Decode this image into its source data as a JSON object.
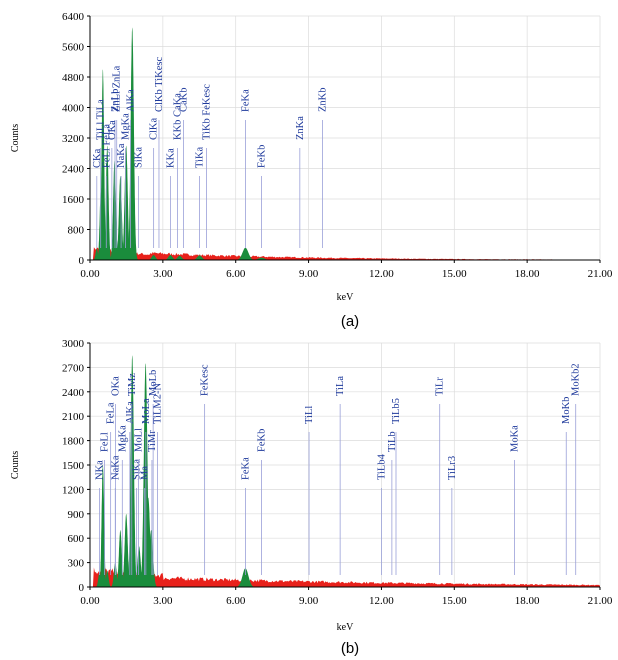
{
  "chart_data": [
    {
      "type": "area",
      "subtitle": "(a)",
      "xlabel": "keV",
      "ylabel": "Counts",
      "xlim": [
        0,
        21
      ],
      "ylim": [
        0,
        6400
      ],
      "grid": true,
      "xticks": [
        "0.00",
        "3.00",
        "6.00",
        "9.00",
        "12.00",
        "15.00",
        "18.00",
        "21.00"
      ],
      "yticks": [
        "0",
        "800",
        "1600",
        "2400",
        "3200",
        "4000",
        "4800",
        "5600",
        "6400"
      ],
      "colors": {
        "spectrum": "#e8211b",
        "peaks": "#1a8c3c",
        "labels": "#1f3a9c",
        "markers": "#9aa0d8"
      },
      "peaks": [
        {
          "e": 0.28,
          "h": 300
        },
        {
          "e": 0.45,
          "h": 1900
        },
        {
          "e": 0.53,
          "h": 5000
        },
        {
          "e": 0.71,
          "h": 3000
        },
        {
          "e": 1.01,
          "h": 2600
        },
        {
          "e": 1.05,
          "h": 1000
        },
        {
          "e": 1.25,
          "h": 2200
        },
        {
          "e": 1.49,
          "h": 3000
        },
        {
          "e": 1.74,
          "h": 6100
        },
        {
          "e": 2.62,
          "h": 130
        },
        {
          "e": 3.31,
          "h": 130
        },
        {
          "e": 3.69,
          "h": 110
        },
        {
          "e": 4.51,
          "h": 120
        },
        {
          "e": 6.4,
          "h": 320
        },
        {
          "e": 7.06,
          "h": 60
        }
      ],
      "labels": [
        {
          "text": "CKa",
          "e": 0.28
        },
        {
          "text": "TiLl TiLa",
          "e": 0.44
        },
        {
          "text": "ZnLb",
          "e": 1.03
        },
        {
          "text": "FeLl FeLa",
          "e": 0.67
        },
        {
          "text": "OKa",
          "e": 0.9
        },
        {
          "text": "ZnLl ZnLa",
          "e": 1.1
        },
        {
          "text": "NaKa",
          "e": 1.28
        },
        {
          "text": "MgKa",
          "e": 1.46
        },
        {
          "text": "AlKa",
          "e": 1.67
        },
        {
          "text": "SiKa",
          "e": 2.0
        },
        {
          "text": "ClKa",
          "e": 2.62
        },
        {
          "text": "ClKb TiKesc",
          "e": 2.84
        },
        {
          "text": "KKa",
          "e": 3.31
        },
        {
          "text": "KKb CaKa",
          "e": 3.6
        },
        {
          "text": "CaKb",
          "e": 3.85
        },
        {
          "text": "TiKa",
          "e": 4.51
        },
        {
          "text": "TiKb FeKesc",
          "e": 4.8
        },
        {
          "text": "FeKa",
          "e": 6.4
        },
        {
          "text": "FeKb",
          "e": 7.06
        },
        {
          "text": "ZnKa",
          "e": 8.64
        },
        {
          "text": "ZnKb",
          "e": 9.57
        }
      ]
    },
    {
      "type": "area",
      "subtitle": "(b)",
      "xlabel": "keV",
      "ylabel": "Counts",
      "xlim": [
        0,
        21
      ],
      "ylim": [
        0,
        3000
      ],
      "grid": true,
      "xticks": [
        "0.00",
        "3.00",
        "6.00",
        "9.00",
        "12.00",
        "15.00",
        "18.00",
        "21.00"
      ],
      "yticks": [
        "0",
        "300",
        "600",
        "900",
        "1200",
        "1500",
        "1800",
        "2100",
        "2400",
        "2700",
        "3000"
      ],
      "colors": {
        "spectrum": "#e8211b",
        "peaks": "#1a8c3c",
        "labels": "#1f3a9c",
        "markers": "#9aa0d8"
      },
      "peaks": [
        {
          "e": 0.39,
          "h": 180
        },
        {
          "e": 0.53,
          "h": 1500
        },
        {
          "e": 0.71,
          "h": 200
        },
        {
          "e": 1.04,
          "h": 300
        },
        {
          "e": 1.25,
          "h": 700
        },
        {
          "e": 1.49,
          "h": 900
        },
        {
          "e": 1.74,
          "h": 2850
        },
        {
          "e": 2.02,
          "h": 500
        },
        {
          "e": 2.29,
          "h": 2750
        },
        {
          "e": 2.4,
          "h": 1100
        },
        {
          "e": 2.52,
          "h": 700
        },
        {
          "e": 6.4,
          "h": 230
        }
      ],
      "labels": [
        {
          "text": "NKa",
          "e": 0.39
        },
        {
          "text": "FeLl",
          "e": 0.6
        },
        {
          "text": "FeLa",
          "e": 0.85
        },
        {
          "text": "OKa",
          "e": 1.05
        },
        {
          "text": "NaKa",
          "e": 1.04
        },
        {
          "text": "MgKa",
          "e": 1.33
        },
        {
          "text": "AlKa",
          "e": 1.64
        },
        {
          "text": "TiMz",
          "e": 1.72
        },
        {
          "text": "SiKa",
          "e": 1.92
        },
        {
          "text": "MoLl",
          "e": 2.0
        },
        {
          "text": "MoLa",
          "e": 2.3
        },
        {
          "text": "MoLb",
          "e": 2.6
        },
        {
          "text": "Ma",
          "e": 2.25
        },
        {
          "text": "TiMr",
          "e": 2.55
        },
        {
          "text": "TiLM2-N",
          "e": 2.78
        },
        {
          "text": "FeKesc",
          "e": 4.72
        },
        {
          "text": "FeKa",
          "e": 6.4
        },
        {
          "text": "FeKb",
          "e": 7.06
        },
        {
          "text": "TiLl",
          "e": 9.02
        },
        {
          "text": "TiLa",
          "e": 10.3
        },
        {
          "text": "TiLb4",
          "e": 12.0
        },
        {
          "text": "TiLb",
          "e": 12.43
        },
        {
          "text": "TiLb5",
          "e": 12.6
        },
        {
          "text": "TiLr",
          "e": 14.4
        },
        {
          "text": "TiLr3",
          "e": 14.9
        },
        {
          "text": "MoKa",
          "e": 17.48
        },
        {
          "text": "MoKb",
          "e": 19.61
        },
        {
          "text": "MoKb2",
          "e": 20.0
        }
      ]
    }
  ]
}
